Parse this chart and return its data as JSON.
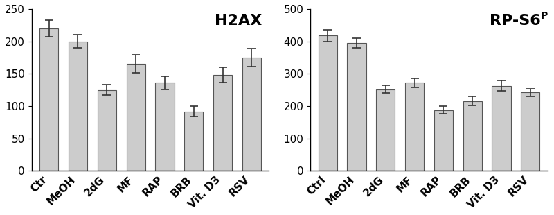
{
  "left_panel": {
    "title": "H2AX",
    "categories": [
      "Ctr",
      "MeOH",
      "2dG",
      "MF",
      "RAP",
      "BRB",
      "Vit. D3",
      "RSV"
    ],
    "values": [
      220,
      200,
      125,
      165,
      136,
      92,
      148,
      175
    ],
    "errors": [
      13,
      10,
      8,
      14,
      10,
      8,
      12,
      14
    ],
    "ylim": [
      0,
      250
    ],
    "yticks": [
      0,
      50,
      100,
      150,
      200,
      250
    ]
  },
  "right_panel": {
    "title": "RP-S6",
    "title_superscript": "P",
    "categories": [
      "Ctrl",
      "MeOH",
      "2dG",
      "MF",
      "RAP",
      "BRB",
      "Vit. D3",
      "RSV"
    ],
    "values": [
      418,
      395,
      252,
      272,
      188,
      216,
      263,
      242
    ],
    "errors": [
      18,
      14,
      12,
      14,
      12,
      14,
      16,
      12
    ],
    "ylim": [
      0,
      500
    ],
    "yticks": [
      0,
      100,
      200,
      300,
      400,
      500
    ]
  },
  "bar_color": "#cccccc",
  "bar_edgecolor": "#555555",
  "bar_width": 0.65,
  "title_fontsize": 16,
  "tick_fontsize": 11,
  "background_color": "#ffffff",
  "errorbar_color": "#333333",
  "errorbar_capsize": 4,
  "errorbar_linewidth": 1.2
}
